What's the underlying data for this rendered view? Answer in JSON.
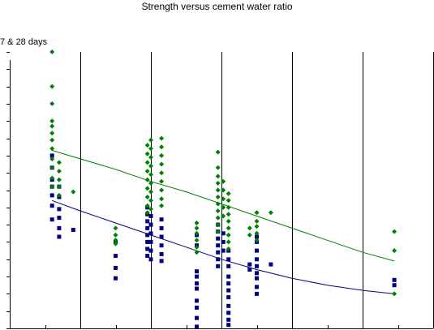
{
  "chart_data": {
    "type": "scatter",
    "title": "Strength versus cement water ratio",
    "ylabel": "7 & 28 days",
    "xlabel": "",
    "xlim": [
      0,
      12
    ],
    "ylim": [
      0,
      16
    ],
    "grid": {
      "x_major": true,
      "y_major": false
    },
    "colors": {
      "seven_day": "#000080",
      "twenty_eight_day": "#008000",
      "grid": "#000000"
    },
    "series": [
      {
        "marker": "square",
        "color": "#000080",
        "points": [
          [
            1.2,
            10
          ],
          [
            1.2,
            9.3
          ],
          [
            1.2,
            8.6
          ],
          [
            1.2,
            8.2
          ],
          [
            1.2,
            7.7
          ],
          [
            1.2,
            7.1
          ],
          [
            1.2,
            6.3
          ],
          [
            1.4,
            8.2
          ],
          [
            1.4,
            7.6
          ],
          [
            1.4,
            6.9
          ],
          [
            1.4,
            6.4
          ],
          [
            1.4,
            5.8
          ],
          [
            1.4,
            5.3
          ],
          [
            1.8,
            5.7
          ],
          [
            3.0,
            5.0
          ],
          [
            3.0,
            4.2
          ],
          [
            3.0,
            3.5
          ],
          [
            3.0,
            2.9
          ],
          [
            3.9,
            7.0
          ],
          [
            3.9,
            6.6
          ],
          [
            3.9,
            6.2
          ],
          [
            3.9,
            5.8
          ],
          [
            3.9,
            5.4
          ],
          [
            3.9,
            5.0
          ],
          [
            3.9,
            4.6
          ],
          [
            3.9,
            4.2
          ],
          [
            4.0,
            6.5
          ],
          [
            4.0,
            6.0
          ],
          [
            4.0,
            5.5
          ],
          [
            4.0,
            5.0
          ],
          [
            4.0,
            4.5
          ],
          [
            4.0,
            4.0
          ],
          [
            4.3,
            6.3
          ],
          [
            4.3,
            5.8
          ],
          [
            4.3,
            5.3
          ],
          [
            4.3,
            4.8
          ],
          [
            4.3,
            4.3
          ],
          [
            4.3,
            3.9
          ],
          [
            5.3,
            5.4
          ],
          [
            5.3,
            4.8
          ],
          [
            5.3,
            3.3
          ],
          [
            5.3,
            3.0
          ],
          [
            5.3,
            2.6
          ],
          [
            5.3,
            2.3
          ],
          [
            5.3,
            1.6
          ],
          [
            5.3,
            1.2
          ],
          [
            5.3,
            0.6
          ],
          [
            5.3,
            0.1
          ],
          [
            5.9,
            6.0
          ],
          [
            5.9,
            5.6
          ],
          [
            5.9,
            5.2
          ],
          [
            5.9,
            4.8
          ],
          [
            5.9,
            4.4
          ],
          [
            5.9,
            4.0
          ],
          [
            5.9,
            3.6
          ],
          [
            6.05,
            5.5
          ],
          [
            6.05,
            5.0
          ],
          [
            6.05,
            4.5
          ],
          [
            6.2,
            4.5
          ],
          [
            6.2,
            4.0
          ],
          [
            6.2,
            3.6
          ],
          [
            6.2,
            3.0
          ],
          [
            6.2,
            2.6
          ],
          [
            6.2,
            2.2
          ],
          [
            6.2,
            1.8
          ],
          [
            6.2,
            1.3
          ],
          [
            6.2,
            0.9
          ],
          [
            6.2,
            0.5
          ],
          [
            6.2,
            0.2
          ],
          [
            6.8,
            3.7
          ],
          [
            6.8,
            3.4
          ],
          [
            7.0,
            5.3
          ],
          [
            7.0,
            5.0
          ],
          [
            7.0,
            4.5
          ],
          [
            7.0,
            4.0
          ],
          [
            7.0,
            3.6
          ],
          [
            7.0,
            3.2
          ],
          [
            7.0,
            2.9
          ],
          [
            7.0,
            2.4
          ],
          [
            7.0,
            2.0
          ],
          [
            7.4,
            3.7
          ],
          [
            10.9,
            2.8
          ],
          [
            10.9,
            2.5
          ]
        ]
      },
      {
        "marker": "diamond",
        "color": "#008000",
        "points": [
          [
            1.2,
            16
          ],
          [
            1.2,
            14
          ],
          [
            1.2,
            13
          ],
          [
            1.2,
            12
          ],
          [
            1.2,
            11.7
          ],
          [
            1.2,
            11.3
          ],
          [
            1.2,
            10.9
          ],
          [
            1.2,
            10.4
          ],
          [
            1.2,
            9.8
          ],
          [
            1.2,
            9.3
          ],
          [
            1.2,
            8.7
          ],
          [
            1.2,
            8.2
          ],
          [
            1.4,
            9.6
          ],
          [
            1.4,
            9.1
          ],
          [
            1.4,
            8.6
          ],
          [
            1.4,
            8.2
          ],
          [
            1.4,
            7.7
          ],
          [
            1.8,
            7.9
          ],
          [
            3.0,
            5.8
          ],
          [
            3.0,
            5.4
          ],
          [
            3.0,
            5.1
          ],
          [
            3.0,
            4.9
          ],
          [
            3.9,
            10.6
          ],
          [
            3.9,
            10.1
          ],
          [
            3.9,
            9.6
          ],
          [
            3.9,
            9.1
          ],
          [
            3.9,
            8.6
          ],
          [
            3.9,
            8.1
          ],
          [
            3.9,
            7.6
          ],
          [
            3.9,
            7.1
          ],
          [
            3.9,
            6.7
          ],
          [
            4.0,
            10.9
          ],
          [
            4.0,
            10.4
          ],
          [
            4.0,
            9.9
          ],
          [
            4.0,
            9.4
          ],
          [
            4.0,
            8.9
          ],
          [
            4.0,
            8.4
          ],
          [
            4.0,
            7.9
          ],
          [
            4.0,
            7.4
          ],
          [
            4.0,
            6.9
          ],
          [
            4.3,
            11.0
          ],
          [
            4.3,
            10.5
          ],
          [
            4.3,
            10.0
          ],
          [
            4.3,
            9.5
          ],
          [
            4.3,
            9.0
          ],
          [
            4.3,
            8.5
          ],
          [
            4.3,
            8.0
          ],
          [
            4.3,
            7.5
          ],
          [
            4.3,
            7.1
          ],
          [
            5.3,
            6.1
          ],
          [
            5.3,
            5.8
          ],
          [
            5.3,
            5.5
          ],
          [
            5.3,
            5.1
          ],
          [
            5.3,
            4.7
          ],
          [
            5.3,
            4.4
          ],
          [
            5.9,
            10.2
          ],
          [
            5.9,
            9.3
          ],
          [
            5.9,
            8.8
          ],
          [
            5.9,
            8.4
          ],
          [
            5.9,
            8.0
          ],
          [
            5.9,
            7.6
          ],
          [
            5.9,
            7.2
          ],
          [
            5.9,
            6.8
          ],
          [
            5.9,
            6.4
          ],
          [
            5.9,
            6.0
          ],
          [
            5.9,
            5.6
          ],
          [
            6.05,
            8.5
          ],
          [
            6.05,
            8.0
          ],
          [
            6.05,
            7.5
          ],
          [
            6.05,
            7.0
          ],
          [
            6.05,
            6.5
          ],
          [
            6.2,
            7.8
          ],
          [
            6.2,
            7.4
          ],
          [
            6.2,
            7.0
          ],
          [
            6.2,
            6.6
          ],
          [
            6.2,
            6.2
          ],
          [
            6.2,
            5.8
          ],
          [
            6.2,
            5.4
          ],
          [
            6.2,
            5.0
          ],
          [
            6.2,
            4.6
          ],
          [
            6.8,
            5.8
          ],
          [
            6.8,
            5.4
          ],
          [
            7.0,
            6.7
          ],
          [
            7.0,
            6.2
          ],
          [
            7.0,
            5.9
          ],
          [
            7.0,
            5.5
          ],
          [
            7.0,
            5.1
          ],
          [
            7.4,
            6.7
          ],
          [
            10.9,
            5.6
          ],
          [
            10.9,
            4.5
          ],
          [
            10.9,
            2.0
          ]
        ]
      }
    ],
    "trendlines": [
      {
        "color": "#008000",
        "points": [
          [
            1.2,
            10.3
          ],
          [
            3.0,
            9.2
          ],
          [
            4.0,
            8.5
          ],
          [
            5.0,
            7.9
          ],
          [
            6.0,
            7.2
          ],
          [
            7.0,
            6.5
          ],
          [
            8.0,
            5.8
          ],
          [
            9.0,
            5.1
          ],
          [
            10.0,
            4.4
          ],
          [
            10.9,
            3.9
          ]
        ]
      },
      {
        "color": "#000080",
        "points": [
          [
            1.2,
            7.4
          ],
          [
            2.0,
            6.8
          ],
          [
            3.0,
            6.1
          ],
          [
            4.0,
            5.4
          ],
          [
            5.0,
            4.7
          ],
          [
            6.0,
            4.0
          ],
          [
            7.0,
            3.4
          ],
          [
            8.0,
            2.9
          ],
          [
            9.0,
            2.5
          ],
          [
            10.0,
            2.2
          ],
          [
            10.9,
            2.0
          ]
        ]
      }
    ]
  }
}
